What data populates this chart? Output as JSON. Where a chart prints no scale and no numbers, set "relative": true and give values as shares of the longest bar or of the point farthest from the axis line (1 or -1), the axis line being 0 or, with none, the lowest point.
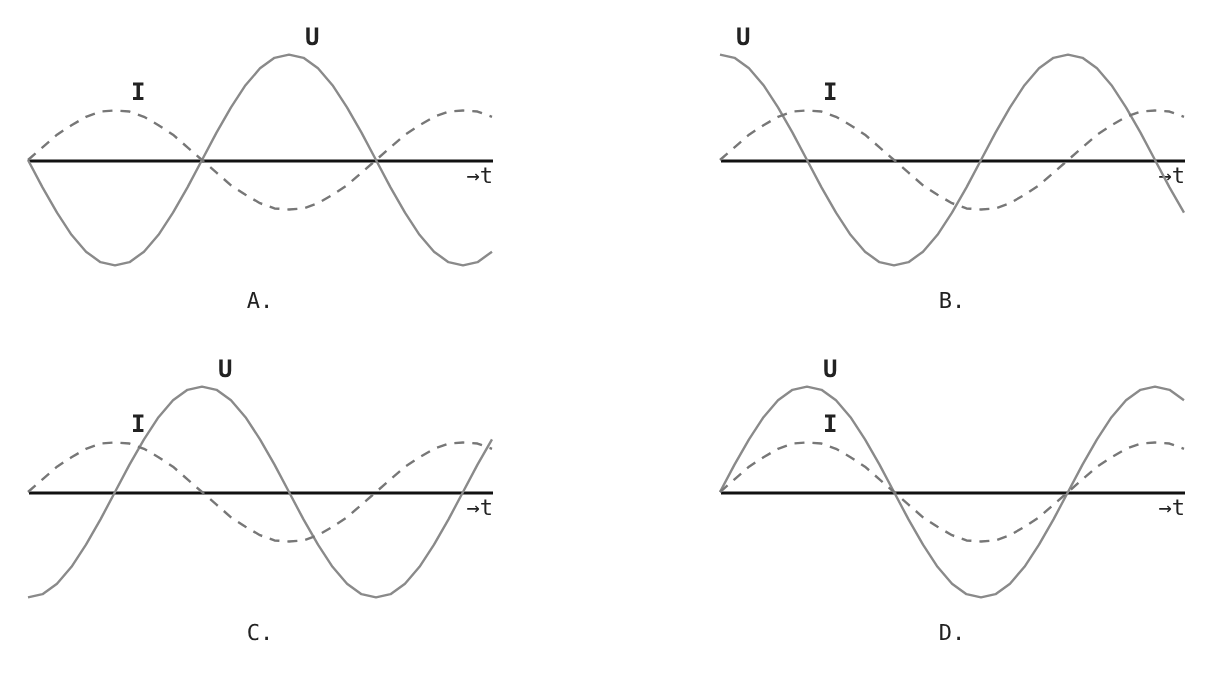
{
  "chart_data": [
    {
      "type": "line",
      "title": "A.",
      "xlabel": "→t",
      "relative": true,
      "tick_labels": false,
      "categories": [
        null,
        null,
        null,
        null,
        null,
        null,
        null,
        null,
        null,
        null,
        null,
        null,
        null,
        null,
        null,
        null,
        null,
        null,
        null,
        null,
        null,
        null,
        null,
        null,
        null,
        null,
        null,
        null,
        null,
        null,
        null,
        null,
        null
      ],
      "series": [
        {
          "name": "U",
          "color": "#8a8a8a",
          "line_style": "solid",
          "values": [
            0,
            -0.26,
            -0.5,
            -0.71,
            -0.87,
            -0.97,
            -1,
            -0.97,
            -0.87,
            -0.71,
            -0.5,
            -0.26,
            0,
            0.26,
            0.5,
            0.71,
            0.87,
            0.97,
            1,
            0.97,
            0.87,
            0.71,
            0.5,
            0.26,
            0,
            -0.26,
            -0.5,
            -0.71,
            -0.87,
            -0.97,
            -1,
            -0.97,
            -0.87
          ]
        },
        {
          "name": "I",
          "color": "#777777",
          "line_style": "dashed",
          "values": [
            0,
            0.12,
            0.24,
            0.33,
            0.41,
            0.46,
            0.47,
            0.46,
            0.41,
            0.33,
            0.24,
            0.12,
            0,
            -0.12,
            -0.24,
            -0.33,
            -0.41,
            -0.46,
            -0.47,
            -0.46,
            -0.41,
            -0.33,
            -0.24,
            -0.12,
            0,
            0.12,
            0.24,
            0.33,
            0.41,
            0.46,
            0.47,
            0.46,
            0.41
          ]
        }
      ]
    },
    {
      "type": "line",
      "title": "B.",
      "xlabel": "→t",
      "relative": true,
      "tick_labels": false,
      "categories": [
        null,
        null,
        null,
        null,
        null,
        null,
        null,
        null,
        null,
        null,
        null,
        null,
        null,
        null,
        null,
        null,
        null,
        null,
        null,
        null,
        null,
        null,
        null,
        null,
        null,
        null,
        null,
        null,
        null,
        null,
        null,
        null,
        null
      ],
      "series": [
        {
          "name": "U",
          "color": "#8a8a8a",
          "line_style": "solid",
          "values": [
            1,
            0.97,
            0.87,
            0.71,
            0.5,
            0.26,
            0,
            -0.26,
            -0.5,
            -0.71,
            -0.87,
            -0.97,
            -1,
            -0.97,
            -0.87,
            -0.71,
            -0.5,
            -0.26,
            0,
            0.26,
            0.5,
            0.71,
            0.87,
            0.97,
            1,
            0.97,
            0.87,
            0.71,
            0.5,
            0.26,
            0,
            -0.26,
            -0.5
          ]
        },
        {
          "name": "I",
          "color": "#777777",
          "line_style": "dashed",
          "values": [
            0,
            0.12,
            0.24,
            0.33,
            0.41,
            0.46,
            0.47,
            0.46,
            0.41,
            0.33,
            0.24,
            0.12,
            0,
            -0.12,
            -0.24,
            -0.33,
            -0.41,
            -0.46,
            -0.47,
            -0.46,
            -0.41,
            -0.33,
            -0.24,
            -0.12,
            0,
            0.12,
            0.24,
            0.33,
            0.41,
            0.46,
            0.47,
            0.46,
            0.41
          ]
        }
      ]
    },
    {
      "type": "line",
      "title": "C.",
      "xlabel": "→t",
      "relative": true,
      "tick_labels": false,
      "categories": [
        null,
        null,
        null,
        null,
        null,
        null,
        null,
        null,
        null,
        null,
        null,
        null,
        null,
        null,
        null,
        null,
        null,
        null,
        null,
        null,
        null,
        null,
        null,
        null,
        null,
        null,
        null,
        null,
        null,
        null,
        null,
        null,
        null
      ],
      "series": [
        {
          "name": "U",
          "color": "#8a8a8a",
          "line_style": "solid",
          "values": [
            -1,
            -0.97,
            -0.87,
            -0.71,
            -0.5,
            -0.26,
            0,
            0.26,
            0.5,
            0.71,
            0.87,
            0.97,
            1,
            0.97,
            0.87,
            0.71,
            0.5,
            0.26,
            0,
            -0.26,
            -0.5,
            -0.71,
            -0.87,
            -0.97,
            -1,
            -0.97,
            -0.87,
            -0.71,
            -0.5,
            -0.26,
            0,
            0.26,
            0.5
          ]
        },
        {
          "name": "I",
          "color": "#777777",
          "line_style": "dashed",
          "values": [
            0,
            0.12,
            0.24,
            0.33,
            0.41,
            0.46,
            0.47,
            0.46,
            0.41,
            0.33,
            0.24,
            0.12,
            0,
            -0.12,
            -0.24,
            -0.33,
            -0.41,
            -0.46,
            -0.47,
            -0.46,
            -0.41,
            -0.33,
            -0.24,
            -0.12,
            0,
            0.12,
            0.24,
            0.33,
            0.41,
            0.46,
            0.47,
            0.46,
            0.41
          ]
        }
      ]
    },
    {
      "type": "line",
      "title": "D.",
      "xlabel": "→t",
      "relative": true,
      "tick_labels": false,
      "categories": [
        null,
        null,
        null,
        null,
        null,
        null,
        null,
        null,
        null,
        null,
        null,
        null,
        null,
        null,
        null,
        null,
        null,
        null,
        null,
        null,
        null,
        null,
        null,
        null,
        null,
        null,
        null,
        null,
        null,
        null,
        null,
        null,
        null
      ],
      "series": [
        {
          "name": "U",
          "color": "#8a8a8a",
          "line_style": "solid",
          "values": [
            0,
            0.26,
            0.5,
            0.71,
            0.87,
            0.97,
            1,
            0.97,
            0.87,
            0.71,
            0.5,
            0.26,
            0,
            -0.26,
            -0.5,
            -0.71,
            -0.87,
            -0.97,
            -1,
            -0.97,
            -0.87,
            -0.71,
            -0.5,
            -0.26,
            0,
            0.26,
            0.5,
            0.71,
            0.87,
            0.97,
            1,
            0.97,
            0.87
          ]
        },
        {
          "name": "I",
          "color": "#777777",
          "line_style": "dashed",
          "values": [
            0,
            0.12,
            0.24,
            0.33,
            0.41,
            0.46,
            0.47,
            0.46,
            0.41,
            0.33,
            0.24,
            0.12,
            0,
            -0.12,
            -0.24,
            -0.33,
            -0.41,
            -0.46,
            -0.47,
            -0.46,
            -0.41,
            -0.33,
            -0.24,
            -0.12,
            0,
            0.12,
            0.24,
            0.33,
            0.41,
            0.46,
            0.47,
            0.46,
            0.41
          ]
        }
      ]
    }
  ]
}
